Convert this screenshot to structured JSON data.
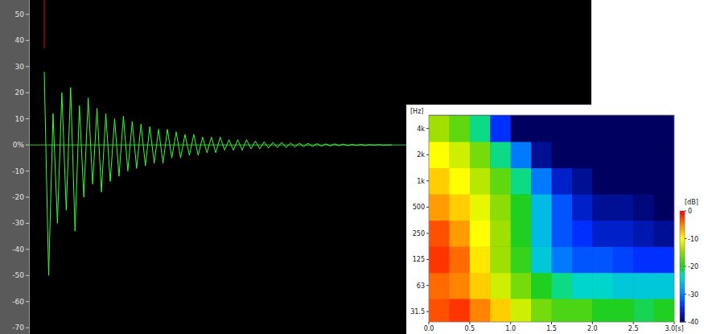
{
  "chart_data": [
    {
      "type": "line",
      "series": [
        {
          "color": "#33ff33",
          "x": [
            0,
            0.02,
            0.04,
            0.06,
            0.08,
            0.1,
            0.12,
            0.14,
            0.16,
            0.18,
            0.2,
            0.22,
            0.24,
            0.26,
            0.28,
            0.3,
            0.32,
            0.34,
            0.36,
            0.38,
            0.4,
            0.42,
            0.44,
            0.46,
            0.48,
            0.5,
            0.52,
            0.54,
            0.56,
            0.58,
            0.6,
            0.62,
            0.64,
            0.66,
            0.68,
            0.7,
            0.72,
            0.74,
            0.76,
            0.78,
            0.8,
            0.82,
            0.84,
            0.86,
            0.88,
            0.9,
            0.92,
            0.94,
            0.96,
            0.98,
            1,
            1.02,
            1.04,
            1.06,
            1.08,
            1.1,
            1.12,
            1.14,
            1.16,
            1.18,
            1.2,
            1.22,
            1.24,
            1.26,
            1.28,
            1.3,
            1.32,
            1.34,
            1.36,
            1.38,
            1.4,
            1.42,
            1.44,
            1.46,
            1.48,
            1.5,
            1.52,
            1.54,
            1.56,
            1.58
          ],
          "values": [
            28,
            -50,
            12,
            -30,
            20,
            -25,
            22,
            -33,
            15,
            -20,
            18,
            -15,
            14,
            -18,
            12,
            -14,
            10,
            -12,
            11,
            -10,
            9,
            -9,
            8,
            -8,
            7,
            -7,
            6,
            -7,
            6,
            -5,
            5,
            -5,
            4,
            -4,
            4,
            -4,
            3,
            -3,
            3,
            -3,
            3,
            -2,
            2,
            -2,
            2,
            -2,
            2,
            -1.5,
            1.5,
            -1.5,
            1.2,
            -1.2,
            1,
            -1,
            1,
            -1,
            0.8,
            -0.8,
            0.7,
            -0.7,
            0.6,
            -0.6,
            0.5,
            -0.5,
            0.4,
            -0.4,
            0.4,
            -0.3,
            0.3,
            -0.3,
            0.2,
            -0.2,
            0.2,
            -0.2,
            0.1,
            -0.1,
            0.1,
            -0.1,
            0,
            0
          ]
        }
      ],
      "xlim": [
        0,
        3
      ],
      "ylim": [
        -72.4,
        55.5
      ],
      "yticks": [
        50,
        40,
        30,
        20,
        10,
        {
          "value": 0,
          "label": "0%"
        },
        -10,
        -20,
        -30,
        -40,
        -50,
        -60,
        -70
      ],
      "tick_labels": "y"
    },
    {
      "type": "heatmap",
      "log": "y",
      "y_label": "[Hz]",
      "xlim": [
        0,
        3
      ],
      "ylim": [
        24,
        5700
      ],
      "xticks": [
        {
          "value": 0,
          "label": "0.0"
        },
        {
          "value": 0.5,
          "label": "0.5"
        },
        {
          "value": 1,
          "label": "1.0"
        },
        {
          "value": 1.5,
          "label": "1.5"
        },
        {
          "value": 2,
          "label": "2.0"
        },
        {
          "value": 2.5,
          "label": "2.5"
        },
        {
          "value": 3,
          "label": "3.0[s]"
        }
      ],
      "yticks": [
        31.5,
        63,
        125,
        250,
        500,
        {
          "value": 1000,
          "label": "1k"
        },
        {
          "value": 2000,
          "label": "2k"
        },
        {
          "value": 4000,
          "label": "4k"
        }
      ],
      "time_edges": [
        0,
        0.25,
        0.5,
        0.75,
        1,
        1.25,
        1.5,
        1.75,
        2,
        2.25,
        2.5,
        2.75,
        3
      ],
      "freq_bands": [
        31.5,
        63,
        125,
        250,
        500,
        1000,
        2000,
        4000
      ],
      "cells": [
        [
          -3,
          -2,
          -5,
          -8,
          -12,
          -16,
          -18,
          -18,
          -20,
          -20,
          -21,
          -20
        ],
        [
          -4,
          -5,
          -8,
          -12,
          -16,
          -20,
          -22,
          -24,
          -24,
          -25,
          -25,
          -25
        ],
        [
          -2,
          -4,
          -9,
          -14,
          -19,
          -25,
          -30,
          -32,
          -32,
          -33,
          -34,
          -34
        ],
        [
          -3,
          -6,
          -10,
          -14,
          -20,
          -26,
          -32,
          -34,
          -36,
          -36,
          -37,
          -38
        ],
        [
          -6,
          -8,
          -11,
          -15,
          -20,
          -26,
          -32,
          -36,
          -38,
          -38,
          -39,
          -40
        ],
        [
          -8,
          -10,
          -13,
          -17,
          -22,
          -30,
          -36,
          -38,
          -40,
          -40,
          -40,
          -40
        ],
        [
          -10,
          -12,
          -16,
          -22,
          -30,
          -38,
          -40,
          -40,
          -40,
          -40,
          -40,
          -40
        ],
        [
          -14,
          -17,
          -22,
          -34,
          -40,
          -40,
          -40,
          -40,
          -40,
          -40,
          -40,
          -40
        ]
      ],
      "color_range": [
        -40,
        0
      ],
      "color_ticks": [
        0,
        -10,
        -20,
        -30,
        -40
      ],
      "color_label": "[dB]"
    }
  ]
}
